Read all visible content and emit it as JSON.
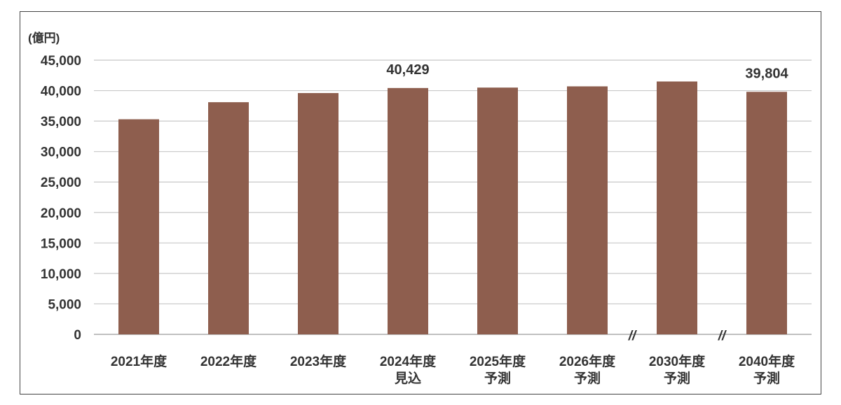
{
  "chart_data": {
    "type": "bar",
    "unit_label": "(億円)",
    "categories": [
      [
        "2021年度"
      ],
      [
        "2022年度"
      ],
      [
        "2023年度"
      ],
      [
        "2024年度",
        "見込"
      ],
      [
        "2025年度",
        "予測"
      ],
      [
        "2026年度",
        "予測"
      ],
      [
        "2030年度",
        "予測"
      ],
      [
        "2040年度",
        "予測"
      ]
    ],
    "values": [
      35300,
      38100,
      39600,
      40429,
      40500,
      40700,
      41500,
      39804
    ],
    "data_labels": [
      "",
      "",
      "",
      "40,429",
      "",
      "",
      "",
      "39,804"
    ],
    "ylim": [
      0,
      45000
    ],
    "yticks": [
      0,
      5000,
      10000,
      15000,
      20000,
      25000,
      30000,
      35000,
      40000,
      45000
    ],
    "ytick_labels": [
      "0",
      "5,000",
      "10,000",
      "15,000",
      "20,000",
      "25,000",
      "30,000",
      "35,000",
      "40,000",
      "45,000"
    ],
    "axis_breaks_before": [
      6,
      7
    ],
    "axis_break_symbol": "//",
    "grid": true,
    "bar_color": "#8e5e4e",
    "grid_color": "#c8c8c8"
  }
}
